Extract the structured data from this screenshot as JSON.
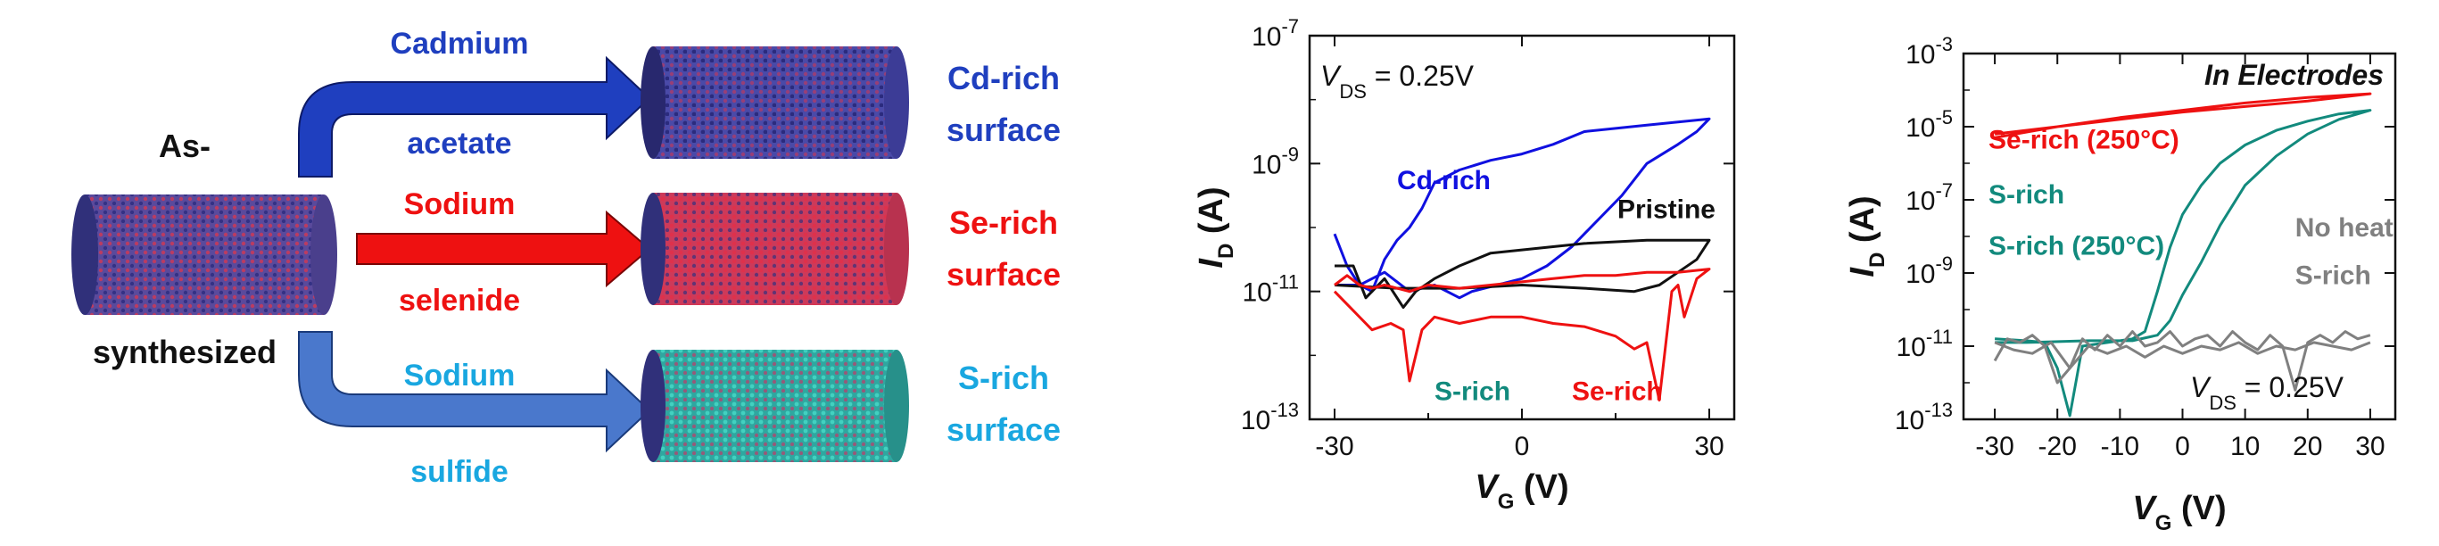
{
  "schematic": {
    "start_label_top": "As-",
    "start_label_bottom": "synthesized",
    "arrows": [
      {
        "reagent_top": "Cadmium",
        "reagent_bottom": "acetate",
        "color": "#1f3fbf",
        "result_top": "Cd-rich",
        "result_bottom": "surface",
        "shell": "#4a4aa8"
      },
      {
        "reagent_top": "Sodium",
        "reagent_bottom": "selenide",
        "color": "#ee1111",
        "result_top": "Se-rich",
        "result_bottom": "surface",
        "shell": "#cc3a5a"
      },
      {
        "reagent_top": "Sodium",
        "reagent_bottom": "sulfide",
        "color": "#19a7e0",
        "result_top": "S-rich",
        "result_bottom": "surface",
        "shell": "#2fa7a0"
      }
    ],
    "colors": {
      "start_shell": "#5a4a9c",
      "start_end": "#30307a",
      "blue_arrow": "#1f3fbf",
      "red_arrow": "#ee1111",
      "cyan_arrow": "#4a78cc"
    }
  },
  "chart_data": [
    {
      "type": "line",
      "title": "",
      "annotation_main": "V",
      "annotation_sub": "DS",
      "annotation_value": " = 0.25V",
      "xlabel_main": "V",
      "xlabel_sub": "G",
      "xlabel_unit": "(V)",
      "ylabel_main": "I",
      "ylabel_sub": "D",
      "ylabel_unit": "(A)",
      "xlim": [
        -34,
        34
      ],
      "ylim_exp": [
        -13,
        -7
      ],
      "log_scale_y": true,
      "xticks": [
        -30,
        0,
        30
      ],
      "yticks": [
        {
          "exp": -13,
          "label": "10",
          "sup": "-13"
        },
        {
          "exp": -11,
          "label": "10",
          "sup": "-11"
        },
        {
          "exp": -9,
          "label": "10",
          "sup": "-9"
        },
        {
          "exp": -7,
          "label": "10",
          "sup": "-7"
        }
      ],
      "series": [
        {
          "name": "Cd-rich",
          "color": "#1010e0",
          "label_x": -20,
          "label_exp": -9.4,
          "points": [
            [
              -30,
              -10.1
            ],
            [
              -28,
              -10.6
            ],
            [
              -26,
              -10.9
            ],
            [
              -24,
              -11.0
            ],
            [
              -22,
              -10.5
            ],
            [
              -20,
              -10.2
            ],
            [
              -18,
              -10.0
            ],
            [
              -16,
              -9.7
            ],
            [
              -14,
              -9.3
            ],
            [
              -10,
              -9.1
            ],
            [
              -5,
              -8.95
            ],
            [
              0,
              -8.85
            ],
            [
              5,
              -8.7
            ],
            [
              10,
              -8.5
            ],
            [
              15,
              -8.45
            ],
            [
              20,
              -8.4
            ],
            [
              25,
              -8.35
            ],
            [
              30,
              -8.3
            ],
            [
              28,
              -8.5
            ],
            [
              25,
              -8.7
            ],
            [
              20,
              -9.0
            ],
            [
              16,
              -9.5
            ],
            [
              12,
              -9.9
            ],
            [
              8,
              -10.3
            ],
            [
              4,
              -10.6
            ],
            [
              0,
              -10.8
            ],
            [
              -4,
              -10.9
            ],
            [
              -8,
              -11.0
            ],
            [
              -10,
              -11.1
            ],
            [
              -14,
              -10.9
            ],
            [
              -18,
              -11.0
            ],
            [
              -22,
              -10.7
            ],
            [
              -26,
              -10.9
            ],
            [
              -30,
              -10.9
            ]
          ]
        },
        {
          "name": "Pristine",
          "color": "#111111",
          "label_x": 31,
          "label_exp": -9.85,
          "points": [
            [
              -30,
              -10.6
            ],
            [
              -27,
              -10.6
            ],
            [
              -25,
              -11.1
            ],
            [
              -22,
              -10.8
            ],
            [
              -19,
              -11.25
            ],
            [
              -17,
              -11.0
            ],
            [
              -14,
              -10.8
            ],
            [
              -10,
              -10.6
            ],
            [
              -5,
              -10.4
            ],
            [
              0,
              -10.35
            ],
            [
              5,
              -10.3
            ],
            [
              10,
              -10.25
            ],
            [
              20,
              -10.2
            ],
            [
              30,
              -10.2
            ],
            [
              28,
              -10.5
            ],
            [
              25,
              -10.7
            ],
            [
              22,
              -10.9
            ],
            [
              18,
              -11.0
            ],
            [
              10,
              -10.95
            ],
            [
              0,
              -10.9
            ],
            [
              -10,
              -10.95
            ],
            [
              -20,
              -10.95
            ],
            [
              -30,
              -10.9
            ]
          ]
        },
        {
          "name": "Se-rich",
          "color": "#ee1111",
          "label_x": 8,
          "label_exp": -12.7,
          "points": [
            [
              -30,
              -10.9
            ],
            [
              -28,
              -10.75
            ],
            [
              -26,
              -10.9
            ],
            [
              -24,
              -10.95
            ],
            [
              -22,
              -10.9
            ],
            [
              -20,
              -10.95
            ],
            [
              -18,
              -11.0
            ],
            [
              -15,
              -10.9
            ],
            [
              -10,
              -10.95
            ],
            [
              -5,
              -10.9
            ],
            [
              0,
              -10.85
            ],
            [
              5,
              -10.8
            ],
            [
              10,
              -10.75
            ],
            [
              15,
              -10.75
            ],
            [
              20,
              -10.7
            ],
            [
              25,
              -10.7
            ],
            [
              30,
              -10.65
            ],
            [
              28,
              -10.8
            ],
            [
              26,
              -11.4
            ],
            [
              25,
              -10.9
            ],
            [
              24,
              -11.0
            ],
            [
              22,
              -12.7
            ],
            [
              20,
              -11.8
            ],
            [
              18,
              -11.9
            ],
            [
              15,
              -11.7
            ],
            [
              10,
              -11.55
            ],
            [
              5,
              -11.5
            ],
            [
              0,
              -11.4
            ],
            [
              -5,
              -11.4
            ],
            [
              -10,
              -11.5
            ],
            [
              -14,
              -11.4
            ],
            [
              -16,
              -11.6
            ],
            [
              -18,
              -12.4
            ],
            [
              -19,
              -11.6
            ],
            [
              -21,
              -11.5
            ],
            [
              -24,
              -11.6
            ],
            [
              -27,
              -11.3
            ],
            [
              -30,
              -11.0
            ]
          ]
        },
        {
          "name": "S-rich",
          "color": "#128a7d",
          "label_x": -14,
          "label_exp": -12.7,
          "points": []
        }
      ]
    },
    {
      "type": "line",
      "title": "In Electrodes",
      "annotation_main": "V",
      "annotation_sub": "DS",
      "annotation_value": " = 0.25V",
      "xlabel_main": "V",
      "xlabel_sub": "G",
      "xlabel_unit": "(V)",
      "ylabel_main": "I",
      "ylabel_sub": "D",
      "ylabel_unit": "(A)",
      "xlim": [
        -35,
        34
      ],
      "ylim_exp": [
        -13,
        -3
      ],
      "log_scale_y": true,
      "xticks": [
        -30,
        -20,
        -10,
        0,
        10,
        20,
        30
      ],
      "yticks": [
        {
          "exp": -13,
          "label": "10",
          "sup": "-13"
        },
        {
          "exp": -11,
          "label": "10",
          "sup": "-11"
        },
        {
          "exp": -9,
          "label": "10",
          "sup": "-9"
        },
        {
          "exp": -7,
          "label": "10",
          "sup": "-7"
        },
        {
          "exp": -5,
          "label": "10",
          "sup": "-5"
        },
        {
          "exp": -3,
          "label": "10",
          "sup": "-3"
        }
      ],
      "series": [
        {
          "name": "Se-rich (250°C)",
          "color": "#ee1111",
          "label_x": -31,
          "label_exp": -5.6,
          "points": [
            [
              -30,
              -5.2
            ],
            [
              -20,
              -5.0
            ],
            [
              -10,
              -4.75
            ],
            [
              0,
              -4.55
            ],
            [
              10,
              -4.35
            ],
            [
              20,
              -4.2
            ],
            [
              30,
              -4.1
            ],
            [
              20,
              -4.3
            ],
            [
              10,
              -4.45
            ],
            [
              0,
              -4.6
            ],
            [
              -10,
              -4.8
            ],
            [
              -20,
              -5.0
            ],
            [
              -30,
              -5.3
            ]
          ]
        },
        {
          "name": "S-rich",
          "color": "#128a7d",
          "label_x": -31,
          "label_exp": -7.1,
          "points": [
            [
              -30,
              -10.8
            ],
            [
              -25,
              -10.85
            ],
            [
              -22,
              -10.9
            ],
            [
              -20,
              -11.6
            ],
            [
              -18,
              -12.9
            ],
            [
              -16,
              -11.0
            ],
            [
              -12,
              -10.9
            ],
            [
              -8,
              -10.8
            ],
            [
              -6,
              -10.6
            ],
            [
              -4,
              -9.5
            ],
            [
              -2,
              -8.3
            ],
            [
              0,
              -7.4
            ],
            [
              3,
              -6.6
            ],
            [
              6,
              -6.0
            ],
            [
              10,
              -5.5
            ],
            [
              15,
              -5.1
            ],
            [
              20,
              -4.85
            ],
            [
              25,
              -4.65
            ],
            [
              30,
              -4.55
            ],
            [
              25,
              -4.8
            ],
            [
              20,
              -5.2
            ],
            [
              15,
              -5.8
            ],
            [
              10,
              -6.6
            ],
            [
              6,
              -7.7
            ],
            [
              3,
              -8.7
            ],
            [
              0,
              -9.6
            ],
            [
              -2,
              -10.3
            ],
            [
              -4,
              -10.7
            ],
            [
              -8,
              -10.85
            ],
            [
              -15,
              -10.85
            ],
            [
              -25,
              -10.9
            ],
            [
              -30,
              -10.9
            ]
          ]
        },
        {
          "name": "S-rich (250°C)",
          "color": "#128a7d",
          "label_x": -31,
          "label_exp": -8.5,
          "points": []
        },
        {
          "name": "No heat",
          "color": "#808080",
          "label_x": 18,
          "label_exp": -8.0,
          "points": [
            [
              -30,
              -11.4
            ],
            [
              -28,
              -10.8
            ],
            [
              -26,
              -10.9
            ],
            [
              -24,
              -10.7
            ],
            [
              -22,
              -11.0
            ],
            [
              -20,
              -12.0
            ],
            [
              -18,
              -11.6
            ],
            [
              -16,
              -10.8
            ],
            [
              -14,
              -11.1
            ],
            [
              -12,
              -10.7
            ],
            [
              -10,
              -11.0
            ],
            [
              -8,
              -10.6
            ],
            [
              -6,
              -11.0
            ],
            [
              -4,
              -10.9
            ],
            [
              -2,
              -10.6
            ],
            [
              0,
              -11.0
            ],
            [
              2,
              -10.8
            ],
            [
              4,
              -10.7
            ],
            [
              6,
              -11.0
            ],
            [
              8,
              -10.6
            ],
            [
              10,
              -10.9
            ],
            [
              12,
              -11.1
            ],
            [
              14,
              -10.7
            ],
            [
              16,
              -11.0
            ],
            [
              18,
              -12.2
            ],
            [
              20,
              -10.9
            ],
            [
              22,
              -10.7
            ],
            [
              24,
              -10.9
            ],
            [
              26,
              -10.6
            ],
            [
              28,
              -10.8
            ],
            [
              30,
              -10.7
            ]
          ]
        },
        {
          "name": "S-rich",
          "color": "#808080",
          "label_x": 18,
          "label_exp": -9.3,
          "points": [
            [
              -30,
              -10.9
            ],
            [
              -27,
              -11.1
            ],
            [
              -24,
              -11.2
            ],
            [
              -21,
              -10.9
            ],
            [
              -18,
              -11.6
            ],
            [
              -15,
              -11.0
            ],
            [
              -12,
              -11.2
            ],
            [
              -9,
              -11.0
            ],
            [
              -6,
              -11.3
            ],
            [
              -3,
              -11.0
            ],
            [
              0,
              -11.2
            ],
            [
              3,
              -11.0
            ],
            [
              6,
              -11.1
            ],
            [
              9,
              -10.9
            ],
            [
              12,
              -11.2
            ],
            [
              15,
              -11.0
            ],
            [
              18,
              -11.1
            ],
            [
              21,
              -10.9
            ],
            [
              24,
              -11.0
            ],
            [
              27,
              -11.1
            ],
            [
              30,
              -10.9
            ]
          ]
        }
      ]
    }
  ]
}
